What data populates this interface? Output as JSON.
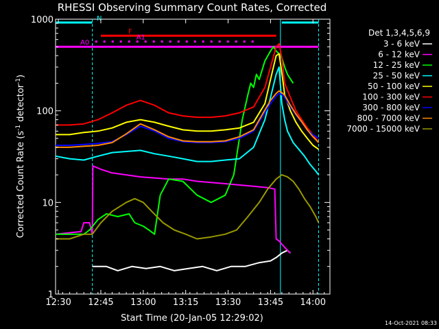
{
  "chart_data": {
    "type": "line",
    "title": "RHESSI Observing Summary Count Rates, Corrected",
    "xlabel": "Start Time (20-Jan-05 12:29:02)",
    "ylabel_main": "Corrected Count Rate (s",
    "ylabel_sup1": "-1",
    "ylabel_mid": " detector",
    "ylabel_sup2": "-1",
    "ylabel_end": ")",
    "xlim": [
      0,
      97
    ],
    "ylim": [
      1,
      1000
    ],
    "yscale": "log",
    "x_ticks": [
      {
        "label": "12:30",
        "value": 1
      },
      {
        "label": "12:45",
        "value": 16
      },
      {
        "label": "13:00",
        "value": 31
      },
      {
        "label": "13:15",
        "value": 46
      },
      {
        "label": "13:30",
        "value": 61
      },
      {
        "label": "13:45",
        "value": 76
      },
      {
        "label": "14:00",
        "value": 91
      }
    ],
    "y_ticks": [
      {
        "label": "1",
        "value": 1
      },
      {
        "label": "10",
        "value": 10
      },
      {
        "label": "100",
        "value": 100
      },
      {
        "label": "1000",
        "value": 1000
      }
    ],
    "vertical_markers": [
      {
        "x": 13,
        "color": "#00ffff",
        "style": "dashed"
      },
      {
        "x": 79.5,
        "color": "#00ffff",
        "style": "solid"
      },
      {
        "x": 93,
        "color": "#00ffff",
        "style": "dashed"
      }
    ],
    "flag_bars": [
      {
        "label": "N",
        "color": "#00ffff",
        "y": 920,
        "segments": [
          [
            0,
            13
          ],
          [
            80,
            93
          ]
        ]
      },
      {
        "label": "F",
        "color": "#ff0000",
        "y": 660,
        "segments": [
          [
            16,
            78
          ]
        ]
      },
      {
        "label": "A0",
        "color": "#ff00ff",
        "y": 500,
        "segments": [
          [
            0,
            93
          ]
        ]
      },
      {
        "label": "A1",
        "color": "#ff00ff",
        "y": 570,
        "dotted": true,
        "segments": [
          [
            14,
            72
          ]
        ]
      }
    ],
    "legend_title": "Det 1,3,4,5,6,9",
    "series": [
      {
        "name": "3 - 6 keV",
        "color": "#ffffff",
        "x": [
          13,
          15,
          18,
          22,
          27,
          32,
          37,
          42,
          47,
          52,
          57,
          62,
          67,
          72,
          76,
          78,
          80,
          82,
          83
        ],
        "y": [
          2,
          2,
          2,
          1.8,
          2,
          1.9,
          2,
          1.8,
          1.9,
          2,
          1.8,
          2,
          2,
          2.2,
          2.3,
          2.5,
          2.8,
          3,
          2.8
        ]
      },
      {
        "name": "6 - 12 keV",
        "color": "#ff00ff",
        "x": [
          0,
          9,
          10,
          12,
          13,
          13.2,
          16,
          20,
          25,
          30,
          35,
          40,
          45,
          50,
          55,
          60,
          65,
          70,
          75,
          77.5,
          78,
          79,
          80,
          82,
          83
        ],
        "y": [
          4.5,
          4.8,
          6,
          6,
          4.5,
          25,
          23,
          21,
          20,
          19,
          18.5,
          18,
          18,
          17,
          16.5,
          16,
          15.5,
          15,
          14.5,
          14,
          4,
          3.8,
          3.5,
          3,
          2.8
        ]
      },
      {
        "name": "12 - 25 keV",
        "color": "#00ff00",
        "x": [
          0,
          10,
          12,
          15,
          18,
          22,
          26,
          28,
          31,
          33,
          35,
          37,
          40,
          45,
          50,
          55,
          60,
          63,
          66,
          68,
          69,
          70,
          71,
          72,
          74,
          76,
          77,
          78,
          79,
          80,
          81,
          82,
          84
        ],
        "y": [
          4.5,
          4.5,
          5,
          6.5,
          7.5,
          7,
          7.5,
          6,
          5.5,
          5,
          4.5,
          12,
          18,
          17,
          12,
          10,
          12,
          20,
          80,
          150,
          200,
          180,
          250,
          220,
          350,
          450,
          500,
          450,
          420,
          380,
          300,
          250,
          200
        ]
      },
      {
        "name": "25 - 50 keV",
        "color": "#00ffff",
        "x": [
          0,
          5,
          10,
          15,
          20,
          25,
          30,
          35,
          40,
          45,
          50,
          55,
          60,
          65,
          70,
          74,
          76,
          78,
          79,
          80,
          81,
          82,
          84,
          86,
          88,
          90,
          92,
          93
        ],
        "y": [
          32,
          30,
          29,
          32,
          35,
          36,
          37,
          34,
          32,
          30,
          28,
          28,
          29,
          30,
          40,
          80,
          140,
          250,
          300,
          120,
          80,
          60,
          45,
          38,
          32,
          26,
          22,
          20
        ]
      },
      {
        "name": "50 - 100 keV",
        "color": "#ffff00",
        "x": [
          0,
          5,
          10,
          15,
          20,
          25,
          30,
          35,
          40,
          45,
          50,
          55,
          60,
          65,
          70,
          74,
          76,
          78,
          79,
          80,
          81,
          83,
          85,
          87,
          89,
          91,
          93
        ],
        "y": [
          55,
          55,
          58,
          60,
          65,
          75,
          80,
          75,
          68,
          62,
          60,
          60,
          62,
          65,
          75,
          120,
          220,
          400,
          420,
          260,
          150,
          100,
          75,
          60,
          50,
          42,
          38
        ]
      },
      {
        "name": "100 - 300 keV",
        "color": "#ff0000",
        "x": [
          0,
          5,
          10,
          15,
          20,
          25,
          30,
          35,
          40,
          45,
          50,
          55,
          60,
          65,
          70,
          74,
          76,
          78,
          79,
          80,
          81,
          83,
          85,
          87,
          89,
          91,
          93
        ],
        "y": [
          70,
          70,
          72,
          80,
          95,
          115,
          130,
          115,
          95,
          88,
          85,
          85,
          88,
          95,
          110,
          180,
          300,
          500,
          540,
          380,
          200,
          140,
          100,
          80,
          65,
          55,
          45
        ]
      },
      {
        "name": "300 - 800 keV",
        "color": "#0000ff",
        "x": [
          0,
          5,
          10,
          15,
          20,
          25,
          30,
          35,
          40,
          45,
          50,
          55,
          60,
          65,
          70,
          73,
          76,
          78,
          79,
          80,
          81,
          83,
          85,
          87,
          89,
          91,
          93
        ],
        "y": [
          42,
          42,
          43,
          44,
          46,
          55,
          68,
          60,
          50,
          46,
          45,
          45,
          46,
          50,
          60,
          85,
          120,
          145,
          155,
          150,
          140,
          110,
          90,
          75,
          62,
          55,
          50
        ]
      },
      {
        "name": "800 - 7000 keV",
        "color": "#ff8c00",
        "x": [
          0,
          5,
          10,
          15,
          20,
          25,
          30,
          35,
          40,
          45,
          50,
          55,
          60,
          65,
          70,
          73,
          76,
          78,
          79,
          80,
          81,
          83,
          85,
          87,
          89,
          91,
          93
        ],
        "y": [
          40,
          40,
          41,
          42,
          45,
          56,
          72,
          62,
          52,
          47,
          46,
          46,
          47,
          52,
          62,
          90,
          130,
          155,
          165,
          158,
          148,
          115,
          92,
          76,
          62,
          52,
          45
        ]
      },
      {
        "name": "7000 - 15000 keV",
        "color": "#999900",
        "x": [
          0,
          5,
          10,
          13,
          16,
          20,
          25,
          28,
          31,
          34,
          38,
          42,
          46,
          50,
          55,
          60,
          64,
          68,
          72,
          75,
          78,
          80,
          82,
          84,
          86,
          88,
          90,
          92,
          93
        ],
        "y": [
          4,
          4,
          4.5,
          4.5,
          6,
          8,
          10,
          11,
          10,
          8,
          6,
          5,
          4.5,
          4,
          4.2,
          4.5,
          5,
          7,
          10,
          14,
          18,
          20,
          19,
          17,
          14,
          11,
          9,
          7,
          6
        ]
      }
    ]
  },
  "footer": {
    "timestamp": "14-Oct-2021 08:33"
  }
}
